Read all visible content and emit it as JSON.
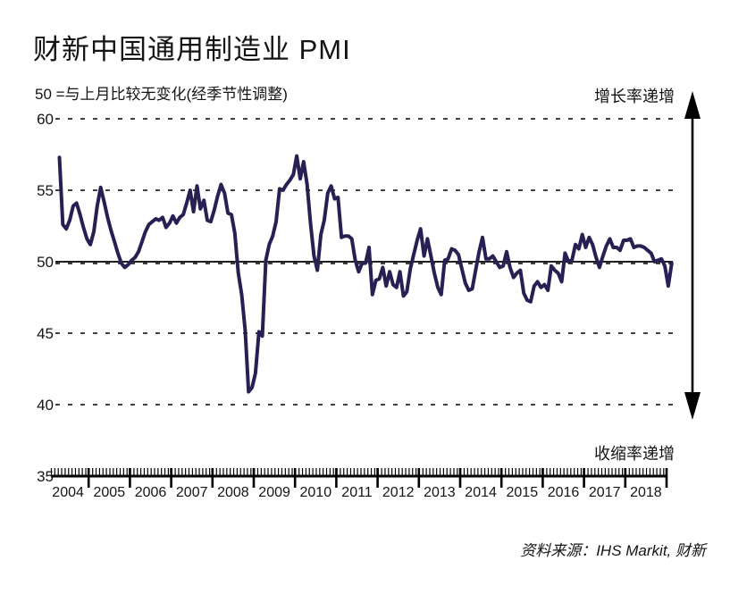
{
  "page": {
    "title": "财新中国通用制造业 PMI",
    "subtitle": "50 =与上月比较无变化(经季节性调整)",
    "annotation_top": "增长率递增",
    "annotation_bottom": "收缩率递增",
    "source": "资料来源：IHS Markit, 财新"
  },
  "chart_data": {
    "type": "line",
    "title": "财新中国通用制造业 PMI",
    "subtitle": "50 =与上月比较无变化(经季节性调整)",
    "series_name": "财新中国通用制造业PMI (经季节性调整)",
    "x_start": "2004-04",
    "x_end": "2019-02",
    "frequency": "monthly",
    "ylim": [
      35,
      60
    ],
    "y_ticks": [
      60,
      55,
      50,
      45,
      40,
      35
    ],
    "reference_line": 50,
    "x_tick_years": [
      "2004",
      "2005",
      "2006",
      "2007",
      "2008",
      "2009",
      "2010",
      "2011",
      "2012",
      "2013",
      "2014",
      "2015",
      "2016",
      "2017",
      "2018"
    ],
    "grid": "dashed horizontal at 60/55/50/45/40, solid line at 50",
    "legend_position": "none",
    "line_color": "#262053",
    "axis_color": "#000000",
    "annotations": {
      "upper_right": "增长率递增",
      "lower_right": "收缩率递增"
    },
    "values": [
      57.3,
      52.6,
      52.3,
      52.9,
      53.9,
      54.1,
      53.3,
      52.4,
      51.6,
      51.2,
      52.1,
      53.9,
      55.2,
      54.2,
      53.1,
      52.2,
      51.4,
      50.6,
      49.9,
      49.6,
      49.8,
      50.1,
      50.3,
      50.7,
      51.4,
      52.1,
      52.6,
      52.8,
      53.0,
      52.9,
      53.1,
      52.4,
      52.7,
      53.2,
      52.7,
      53.1,
      53.3,
      54.1,
      55.0,
      53.5,
      55.3,
      53.7,
      54.3,
      52.9,
      52.8,
      53.6,
      54.6,
      55.4,
      54.8,
      53.4,
      53.3,
      52.0,
      49.2,
      47.7,
      45.2,
      40.9,
      41.2,
      42.2,
      45.1,
      44.8,
      50.1,
      51.2,
      51.8,
      52.8,
      55.1,
      55.0,
      55.4,
      55.7,
      56.1,
      57.4,
      55.8,
      57.0,
      55.4,
      52.7,
      50.4,
      49.4,
      51.9,
      52.9,
      54.8,
      55.3,
      54.4,
      54.5,
      51.7,
      51.8,
      51.8,
      51.6,
      50.1,
      49.3,
      49.9,
      49.9,
      51.0,
      47.7,
      48.7,
      48.8,
      49.6,
      48.3,
      49.3,
      48.4,
      48.2,
      49.3,
      47.6,
      47.9,
      49.5,
      50.5,
      51.5,
      52.3,
      50.4,
      51.6,
      50.4,
      49.2,
      48.2,
      47.7,
      50.1,
      50.2,
      50.9,
      50.8,
      50.5,
      49.5,
      48.5,
      48.0,
      48.1,
      49.4,
      50.7,
      51.7,
      50.2,
      50.2,
      50.4,
      50.0,
      49.6,
      49.7,
      50.7,
      49.6,
      48.9,
      49.2,
      49.4,
      47.8,
      47.3,
      47.2,
      48.3,
      48.6,
      48.2,
      48.4,
      48.0,
      49.7,
      49.4,
      49.2,
      48.6,
      50.6,
      50.0,
      50.1,
      51.2,
      50.9,
      51.9,
      51.0,
      51.7,
      51.2,
      50.3,
      49.6,
      50.4,
      51.1,
      51.6,
      51.0,
      51.0,
      50.8,
      51.5,
      51.5,
      51.6,
      51.0,
      51.1,
      51.1,
      51.0,
      50.8,
      50.6,
      50.0,
      50.1,
      50.2,
      49.7,
      48.3,
      49.9
    ]
  }
}
